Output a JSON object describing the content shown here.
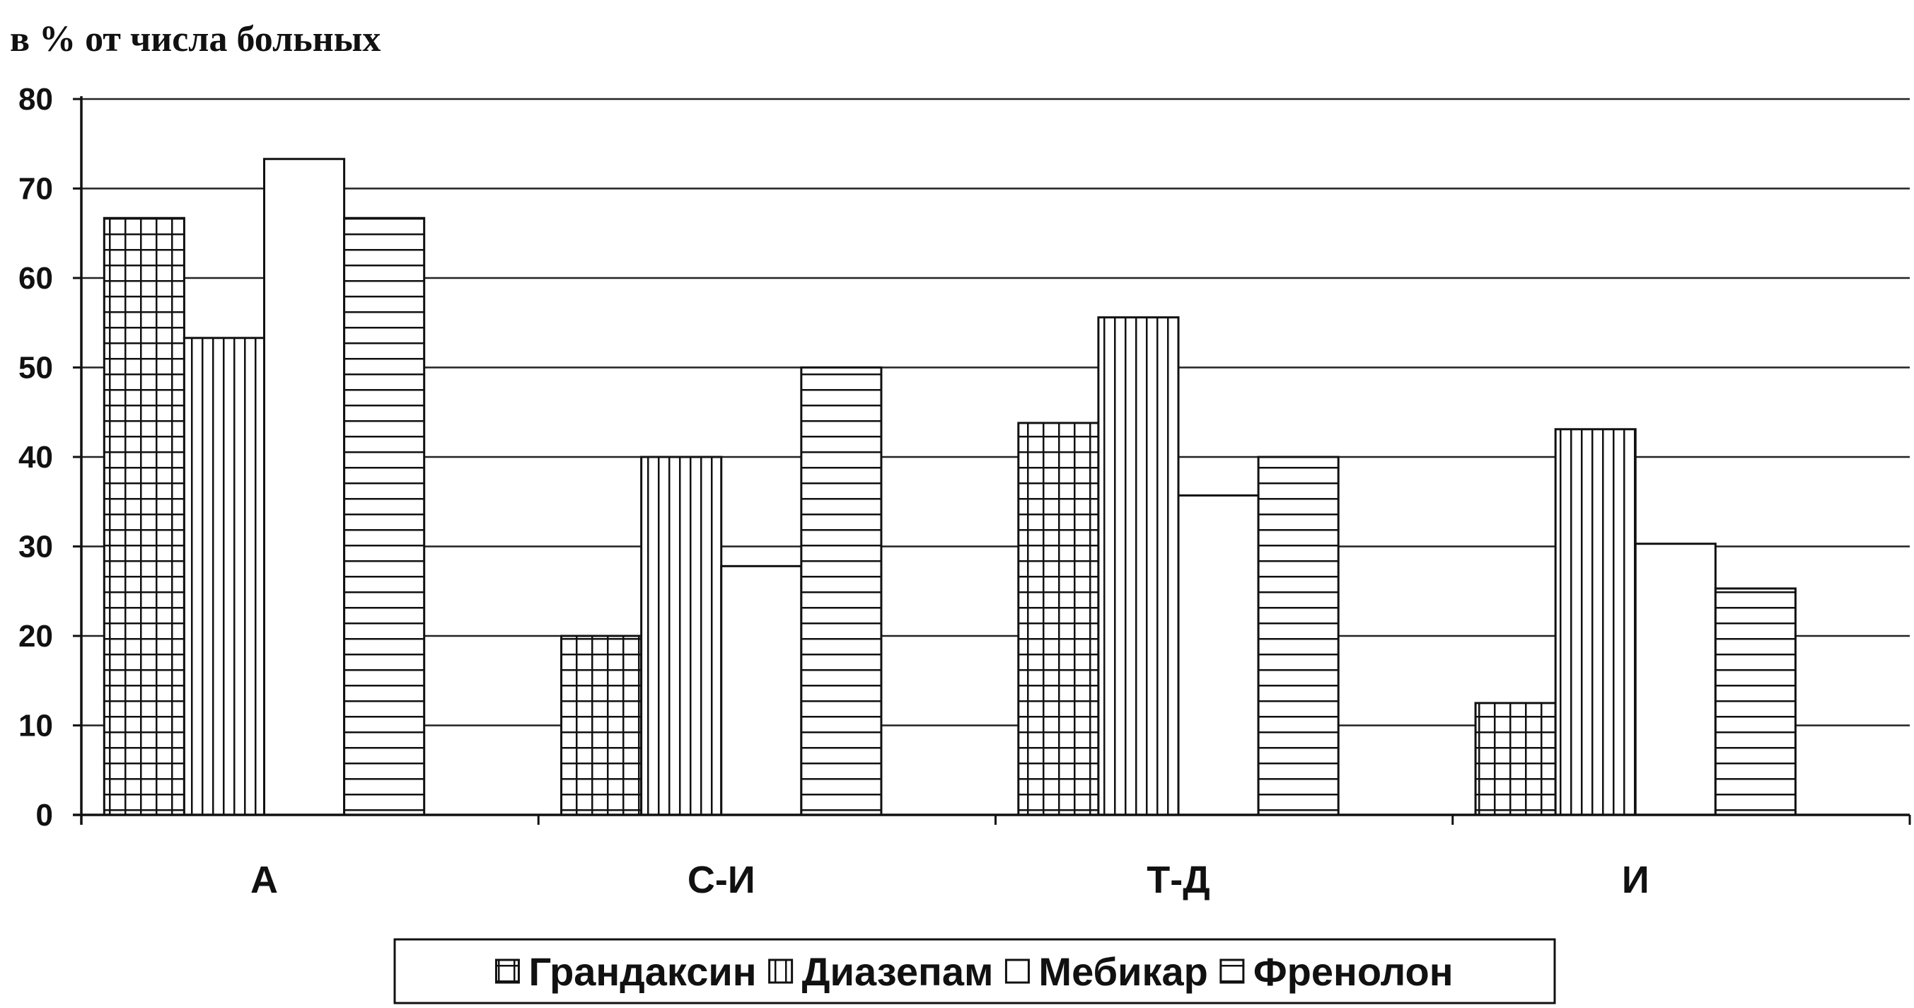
{
  "chart_data": {
    "type": "bar",
    "ylabel": "в % от числа больных",
    "xlabel": "",
    "ylim": [
      0,
      80
    ],
    "yticks": [
      0,
      10,
      20,
      30,
      40,
      50,
      60,
      70,
      80
    ],
    "grid": true,
    "legend_position": "bottom-center",
    "categories": [
      "А",
      "С-И",
      "Т-Д",
      "И"
    ],
    "series": [
      {
        "name": "Грандаксин",
        "pattern": "grid",
        "values": [
          66.7,
          20,
          43.8,
          12.5
        ]
      },
      {
        "name": "Диазепам",
        "pattern": "vertical",
        "values": [
          53.3,
          40,
          55.6,
          43.1
        ]
      },
      {
        "name": "Мебикар",
        "pattern": "blank",
        "values": [
          73.3,
          27.8,
          35.7,
          30.3
        ]
      },
      {
        "name": "Френолон",
        "pattern": "horizontal",
        "values": [
          66.7,
          50,
          40,
          25.3
        ]
      }
    ],
    "colors": {
      "ink": "#111111",
      "grid": "#222222",
      "fill": "#ffffff"
    }
  }
}
